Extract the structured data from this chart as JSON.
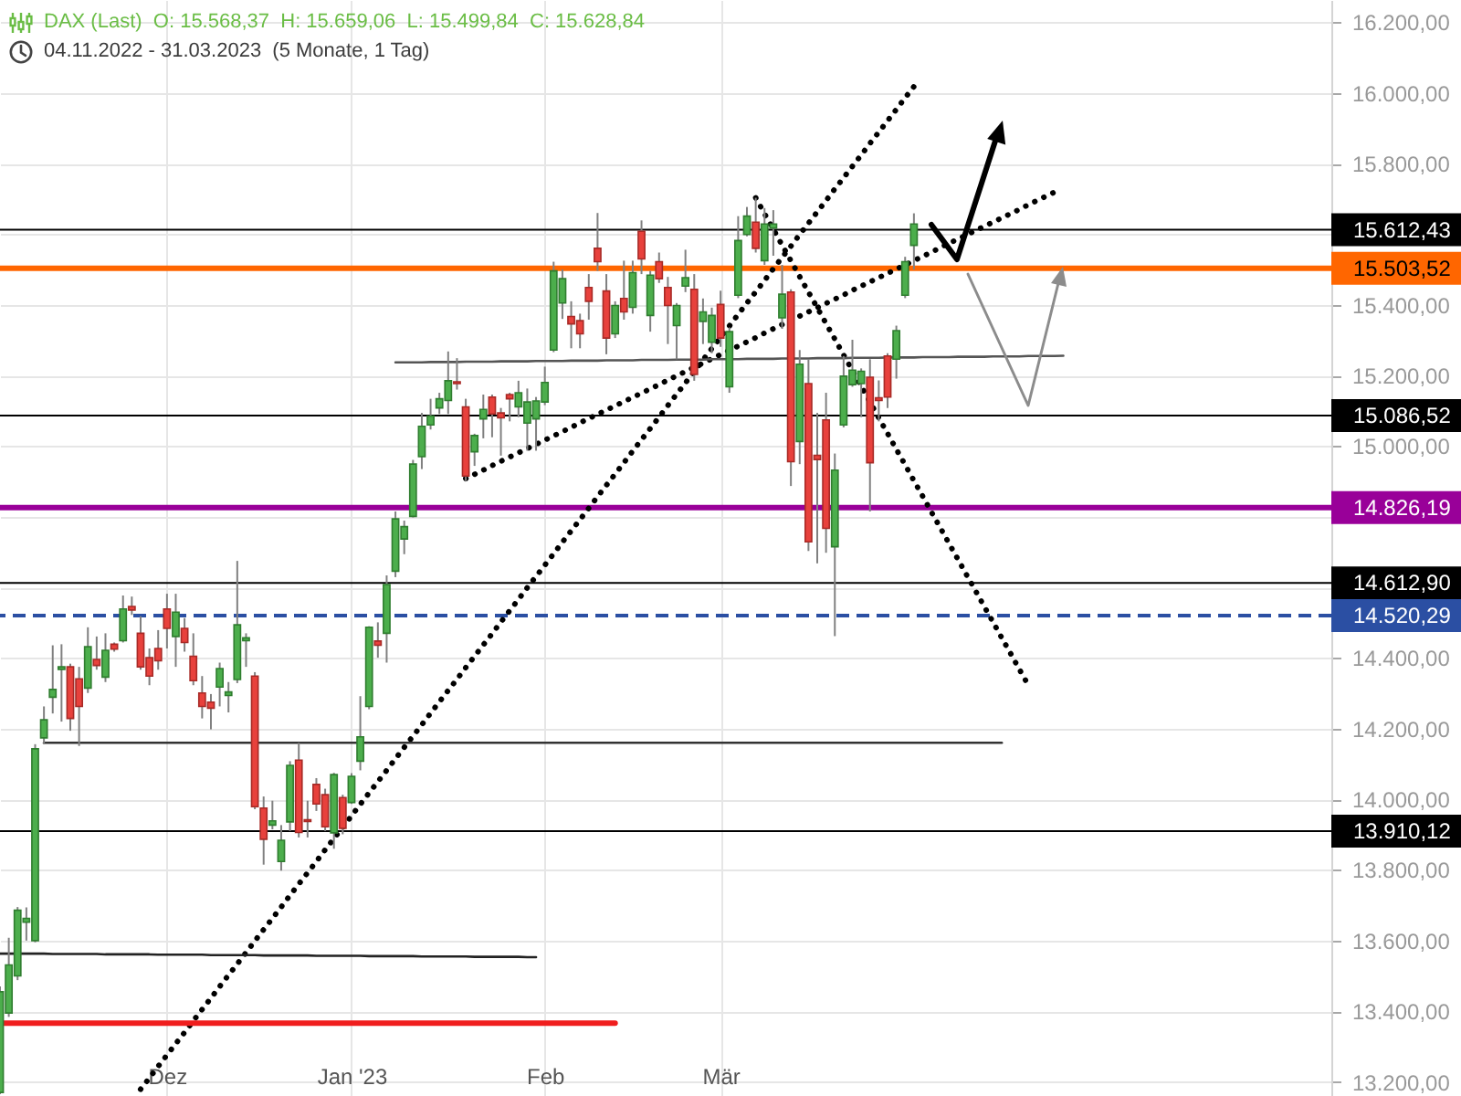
{
  "chart_data": {
    "type": "candlestick",
    "title": "DAX (Last)  O: 15.568,37  H: 15.659,06  L: 15.499,84  C: 15.628,84",
    "subtitle": "04.11.2022 - 31.03.2023  (5 Monate, 1 Tag)",
    "categories": [
      null,
      null,
      null,
      null,
      null,
      null,
      null,
      null,
      null,
      null,
      null,
      null,
      null,
      null,
      null,
      null,
      null,
      null,
      null,
      "Dez",
      null,
      null,
      null,
      null,
      null,
      null,
      null,
      null,
      null,
      null,
      null,
      null,
      null,
      null,
      null,
      null,
      null,
      null,
      null,
      null,
      "Jan '23",
      null,
      null,
      null,
      null,
      null,
      null,
      null,
      null,
      null,
      null,
      null,
      null,
      null,
      null,
      null,
      null,
      null,
      null,
      null,
      null,
      null,
      "Feb",
      null,
      null,
      null,
      null,
      null,
      null,
      null,
      null,
      null,
      null,
      null,
      null,
      null,
      null,
      null,
      null,
      null,
      null,
      null,
      "Mär",
      null,
      null,
      null,
      null,
      null,
      null,
      null,
      null,
      null,
      null,
      null,
      null,
      null,
      null,
      null,
      null,
      null,
      null,
      null,
      null,
      null,
      null,
      null,
      null,
      null,
      null,
      null,
      null,
      null,
      null,
      null,
      null,
      null,
      null,
      null,
      null,
      null,
      null,
      null,
      null,
      null,
      null,
      null,
      null,
      null,
      null,
      null,
      null,
      null,
      null,
      null,
      null,
      null,
      null,
      null,
      null,
      null,
      null,
      null,
      null,
      null,
      null,
      null,
      null,
      null,
      null,
      null,
      null,
      null
    ],
    "ohlc": [
      [
        13170,
        13470,
        13165,
        13455
      ],
      [
        13395,
        13608,
        13384,
        13531
      ],
      [
        13500,
        13695,
        13488,
        13686
      ],
      [
        13652,
        13694,
        13600,
        13663
      ],
      [
        13600,
        14156,
        13595,
        14143
      ],
      [
        14174,
        14263,
        14156,
        14225
      ],
      [
        14289,
        14436,
        14243,
        14311
      ],
      [
        14368,
        14439,
        14220,
        14375
      ],
      [
        14375,
        14384,
        14194,
        14229
      ],
      [
        14341,
        14375,
        14151,
        14263
      ],
      [
        14315,
        14487,
        14301,
        14432
      ],
      [
        14396,
        14461,
        14367,
        14379
      ],
      [
        14346,
        14470,
        14332,
        14422
      ],
      [
        14439,
        14444,
        14418,
        14425
      ],
      [
        14449,
        14577,
        14444,
        14539
      ],
      [
        14546,
        14574,
        14522,
        14536
      ],
      [
        14470,
        14518,
        14367,
        14375
      ],
      [
        14401,
        14427,
        14323,
        14349
      ],
      [
        14427,
        14479,
        14367,
        14392
      ],
      [
        14539,
        14582,
        14427,
        14484
      ],
      [
        14461,
        14582,
        14375,
        14530
      ],
      [
        14484,
        14513,
        14418,
        14444
      ],
      [
        14405,
        14470,
        14323,
        14336
      ],
      [
        14301,
        14349,
        14229,
        14263
      ],
      [
        14275,
        14298,
        14198,
        14258
      ],
      [
        14318,
        14387,
        14263,
        14370
      ],
      [
        14294,
        14332,
        14246,
        14304
      ],
      [
        14339,
        14675,
        14329,
        14494
      ],
      [
        14449,
        14470,
        14375,
        14457
      ],
      [
        14349,
        14360,
        13972,
        13979
      ],
      [
        13975,
        14008,
        13815,
        13887
      ],
      [
        13927,
        13996,
        13915,
        13939
      ],
      [
        13824,
        13927,
        13798,
        13884
      ],
      [
        13936,
        14108,
        13910,
        14096
      ],
      [
        14111,
        14160,
        13892,
        13906
      ],
      [
        13942,
        13996,
        13892,
        13937
      ],
      [
        14042,
        14060,
        13967,
        13987
      ],
      [
        14013,
        14030,
        13910,
        13922
      ],
      [
        13905,
        14075,
        13860,
        14070
      ],
      [
        14005,
        14013,
        13901,
        13918
      ],
      [
        13991,
        14074,
        13987,
        14065
      ],
      [
        14108,
        14292,
        14082,
        14177
      ],
      [
        14263,
        14490,
        14255,
        14487
      ],
      [
        14448,
        14501,
        14401,
        14436
      ],
      [
        14470,
        14634,
        14387,
        14608
      ],
      [
        14646,
        14815,
        14629,
        14794
      ],
      [
        14737,
        14789,
        14694,
        14772
      ],
      [
        14801,
        14961,
        14798,
        14949
      ],
      [
        14970,
        15094,
        14935,
        15056
      ],
      [
        15060,
        15134,
        15047,
        15085
      ],
      [
        15108,
        15151,
        15091,
        15134
      ],
      [
        15129,
        15268,
        15091,
        15185
      ],
      [
        15182,
        15249,
        15160,
        15177
      ],
      [
        15111,
        15134,
        14901,
        14915
      ],
      [
        14984,
        15035,
        14944,
        15030
      ],
      [
        15077,
        15146,
        15022,
        15104
      ],
      [
        15139,
        15146,
        15025,
        15091
      ],
      [
        15094,
        15108,
        14973,
        15080
      ],
      [
        15146,
        15151,
        15070,
        15134
      ],
      [
        15111,
        15185,
        15082,
        15151
      ],
      [
        15065,
        15163,
        14987,
        15125
      ],
      [
        15077,
        15139,
        14987,
        15128
      ],
      [
        15125,
        15225,
        15116,
        15180
      ],
      [
        15272,
        15522,
        15266,
        15496
      ],
      [
        15405,
        15500,
        15360,
        15474
      ],
      [
        15367,
        15410,
        15277,
        15346
      ],
      [
        15355,
        15375,
        15277,
        15318
      ],
      [
        15449,
        15487,
        15358,
        15410
      ],
      [
        15560,
        15660,
        15496,
        15522
      ],
      [
        15439,
        15487,
        15260,
        15306
      ],
      [
        15318,
        15410,
        15306,
        15398
      ],
      [
        15418,
        15525,
        15358,
        15380
      ],
      [
        15393,
        15525,
        15375,
        15491
      ],
      [
        15608,
        15639,
        15487,
        15530
      ],
      [
        15370,
        15496,
        15324,
        15484
      ],
      [
        15522,
        15548,
        15462,
        15474
      ],
      [
        15449,
        15479,
        15289,
        15398
      ],
      [
        15341,
        15405,
        15246,
        15398
      ],
      [
        15453,
        15556,
        15436,
        15477
      ],
      [
        15444,
        15487,
        15185,
        15203
      ],
      [
        15353,
        15418,
        15289,
        15380
      ],
      [
        15294,
        15392,
        15263,
        15370
      ],
      [
        15401,
        15440,
        15281,
        15306
      ],
      [
        15168,
        15336,
        15151,
        15324
      ],
      [
        15427,
        15651,
        15419,
        15582
      ],
      [
        15599,
        15677,
        15594,
        15651
      ],
      [
        15634,
        15703,
        15548,
        15560
      ],
      [
        15525,
        15674,
        15513,
        15629
      ],
      [
        15617,
        15668,
        15539,
        15629
      ],
      [
        15363,
        15513,
        15332,
        15430
      ],
      [
        15436,
        15444,
        14887,
        14956
      ],
      [
        15013,
        15272,
        14949,
        15232
      ],
      [
        15177,
        15246,
        14703,
        14729
      ],
      [
        14974,
        15094,
        14668,
        14962
      ],
      [
        15074,
        15151,
        14698,
        14767
      ],
      [
        14715,
        14979,
        14462,
        14932
      ],
      [
        15060,
        15255,
        15053,
        15198
      ],
      [
        15174,
        15301,
        15168,
        15215
      ],
      [
        15177,
        15220,
        15082,
        15212
      ],
      [
        15195,
        15246,
        14815,
        14953
      ],
      [
        15137,
        15186,
        15070,
        15129
      ],
      [
        15255,
        15263,
        15108,
        15139
      ],
      [
        15246,
        15341,
        15191,
        15327
      ],
      [
        15427,
        15536,
        15419,
        15522
      ],
      [
        15568.37,
        15659.06,
        15499.84,
        15628.84
      ],
      null,
      null,
      null,
      null,
      null,
      null,
      null,
      null,
      null,
      null,
      null,
      null,
      null,
      null,
      null,
      null,
      null,
      null,
      null,
      null,
      null,
      null,
      null,
      null,
      null,
      null,
      null,
      null,
      null,
      null,
      null,
      null,
      null,
      null,
      null,
      null,
      null,
      null,
      null,
      null,
      null,
      null,
      null,
      null,
      null,
      null,
      null
    ],
    "ylim": [
      13160,
      16263
    ],
    "yticks": [
      {
        "value": 13200,
        "label": "13.200,00"
      },
      {
        "value": 13400,
        "label": "13.400,00"
      },
      {
        "value": 13600,
        "label": "13.600,00"
      },
      {
        "value": 13800,
        "label": "13.800,00"
      },
      {
        "value": 14000,
        "label": "14.000,00"
      },
      {
        "value": 14200,
        "label": "14.200,00"
      },
      {
        "value": 14400,
        "label": "14.400,00"
      },
      {
        "value": 14600,
        "label": null
      },
      {
        "value": 14800,
        "label": null
      },
      {
        "value": 15000,
        "label": "15.000,00"
      },
      {
        "value": 15200,
        "label": "15.200,00"
      },
      {
        "value": 15400,
        "label": "15.400,00"
      },
      {
        "value": 15600,
        "label": null
      },
      {
        "value": 15800,
        "label": "15.800,00"
      },
      {
        "value": 16000,
        "label": "16.000,00"
      },
      {
        "value": 16200,
        "label": "16.200,00"
      }
    ],
    "grid": true,
    "ref_lines": [
      {
        "axis": "y",
        "value": 15612.43,
        "label": "15.612,43",
        "color": "#000000"
      },
      {
        "axis": "y",
        "value": 15503.52,
        "label": "15.503,52",
        "color": "#ff6600"
      },
      {
        "axis": "y",
        "value": 15086.52,
        "label": "15.086,52",
        "color": "#000000"
      },
      {
        "axis": "y",
        "value": 14826.19,
        "label": "14.826,19",
        "color": "#990099"
      },
      {
        "axis": "y",
        "value": 14612.9,
        "label": "14.612,90",
        "color": "#000000"
      },
      {
        "axis": "y",
        "value": 14520.29,
        "label": "14.520,29",
        "color": "#2b4fa3",
        "line_style": "dashed"
      },
      {
        "axis": "y",
        "value": 13910.12,
        "label": "13.910,12",
        "color": "#000000"
      }
    ],
    "series": [
      {
        "type": "line",
        "color": "#000000",
        "line_style": "dotted",
        "values": [
          null,
          null,
          null,
          null,
          null,
          null,
          null,
          null,
          null,
          null,
          null,
          null,
          null,
          null,
          null,
          null,
          13179,
          13211,
          13244,
          13276,
          13308,
          13340,
          13373,
          13405,
          13437,
          13470,
          13502,
          13534,
          13566,
          13599,
          13631,
          13663,
          13695,
          13728,
          13760,
          13792,
          13824,
          13857,
          13889,
          13921,
          13953,
          13986,
          14018,
          14050,
          14082,
          14115,
          14147,
          14179,
          14211,
          14244,
          14276,
          14308,
          14340,
          14373,
          14405,
          14437,
          14469,
          14502,
          14534,
          14566,
          14599,
          14631,
          14663,
          14695,
          14728,
          14760,
          14792,
          14824,
          14857,
          14889,
          14921,
          14953,
          14986,
          15018,
          15050,
          15082,
          15115,
          15147,
          15179,
          15211,
          15244,
          15276,
          15308,
          15340,
          15373,
          15405,
          15437,
          15469,
          15502,
          15534,
          15566,
          15599,
          15631,
          15663,
          15695,
          15728,
          15760,
          15792,
          15824,
          15857,
          15889,
          15921,
          15953,
          15986,
          16018,
          null,
          null,
          null,
          null,
          null,
          null,
          null,
          null,
          null,
          null,
          null,
          null,
          null,
          null,
          null,
          null,
          null,
          null,
          null,
          null,
          null,
          null,
          null,
          null,
          null,
          null,
          null,
          null,
          null,
          null,
          null,
          null,
          null,
          null,
          null,
          null,
          null,
          null,
          null,
          null,
          null,
          null,
          null,
          null,
          null,
          null,
          null
        ]
      },
      {
        "type": "line",
        "color": "#000000",
        "line_style": "dotted",
        "values": [
          null,
          null,
          null,
          null,
          null,
          null,
          null,
          null,
          null,
          null,
          null,
          null,
          null,
          null,
          null,
          null,
          null,
          null,
          null,
          null,
          null,
          null,
          null,
          null,
          null,
          null,
          null,
          null,
          null,
          null,
          null,
          null,
          null,
          null,
          null,
          null,
          null,
          null,
          null,
          null,
          null,
          null,
          null,
          null,
          null,
          null,
          null,
          null,
          null,
          null,
          null,
          null,
          null,
          14908,
          14920,
          14932,
          14945,
          14957,
          14969,
          14981,
          14993,
          15005,
          15017,
          15029,
          15041,
          15053,
          15066,
          15078,
          15090,
          15102,
          15114,
          15126,
          15138,
          15150,
          15162,
          15174,
          15187,
          15199,
          15211,
          15223,
          15235,
          15247,
          15259,
          15271,
          15283,
          15295,
          15307,
          15320,
          15332,
          15344,
          15356,
          15368,
          15380,
          15392,
          15404,
          15416,
          15428,
          15441,
          15453,
          15465,
          15477,
          15489,
          15501,
          15513,
          15525,
          15537,
          15549,
          15562,
          15574,
          15586,
          15598,
          15610,
          15622,
          15634,
          15646,
          15658,
          15670,
          15683,
          15695,
          15707,
          15719,
          null,
          null,
          null,
          null,
          null,
          null,
          null,
          null,
          null,
          null,
          null,
          null,
          null,
          null,
          null,
          null,
          null,
          null,
          null,
          null,
          null,
          null,
          null,
          null,
          null,
          null,
          null,
          null,
          null,
          null,
          null
        ]
      },
      {
        "type": "line",
        "color": "#000000",
        "line_style": "dotted",
        "values": [
          null,
          null,
          null,
          null,
          null,
          null,
          null,
          null,
          null,
          null,
          null,
          null,
          null,
          null,
          null,
          null,
          null,
          null,
          null,
          null,
          null,
          null,
          null,
          null,
          null,
          null,
          null,
          null,
          null,
          null,
          null,
          null,
          null,
          null,
          null,
          null,
          null,
          null,
          null,
          null,
          null,
          null,
          null,
          null,
          null,
          null,
          null,
          null,
          null,
          null,
          null,
          null,
          null,
          null,
          null,
          null,
          null,
          null,
          null,
          null,
          null,
          null,
          null,
          null,
          null,
          null,
          null,
          null,
          null,
          null,
          null,
          null,
          null,
          null,
          null,
          null,
          null,
          null,
          null,
          null,
          null,
          null,
          null,
          null,
          null,
          null,
          15703,
          15658,
          15614,
          15569,
          15525,
          15480,
          15436,
          15392,
          15347,
          15303,
          15258,
          15214,
          15169,
          15125,
          15080,
          15036,
          14991,
          14947,
          14902,
          14858,
          14813,
          14769,
          14724,
          14680,
          14635,
          14591,
          14546,
          14502,
          14457,
          14413,
          14368,
          14324,
          null,
          null,
          null,
          null,
          null,
          null,
          null,
          null,
          null,
          null,
          null,
          null,
          null,
          null,
          null,
          null,
          null,
          null,
          null,
          null,
          null,
          null,
          null,
          null,
          null,
          null,
          null,
          null,
          null,
          null,
          null,
          null,
          null,
          null
        ]
      },
      {
        "type": "line",
        "color": "#555555",
        "line_style": "solid",
        "values": [
          null,
          null,
          null,
          null,
          null,
          null,
          null,
          null,
          null,
          null,
          null,
          null,
          null,
          null,
          null,
          null,
          null,
          null,
          null,
          null,
          null,
          null,
          null,
          null,
          null,
          null,
          null,
          null,
          null,
          null,
          null,
          null,
          null,
          null,
          null,
          null,
          null,
          null,
          null,
          null,
          null,
          null,
          null,
          null,
          null,
          15237,
          15237,
          15237,
          15237,
          15238,
          15238,
          15238,
          15238,
          15239,
          15239,
          15239,
          15239,
          15240,
          15240,
          15240,
          15240,
          15241,
          15241,
          15241,
          15241,
          15242,
          15242,
          15242,
          15242,
          15243,
          15243,
          15243,
          15243,
          15244,
          15244,
          15244,
          15244,
          15245,
          15245,
          15245,
          15245,
          15246,
          15246,
          15246,
          15246,
          15247,
          15247,
          15247,
          15247,
          15248,
          15248,
          15248,
          15248,
          15249,
          15249,
          15249,
          15249,
          15250,
          15250,
          15250,
          15250,
          15251,
          15251,
          15251,
          15251,
          15252,
          15252,
          15252,
          15252,
          15253,
          15253,
          15253,
          15253,
          15254,
          15254,
          15254,
          15254,
          15255,
          15255,
          15255,
          15255,
          15256,
          null,
          null,
          null,
          null,
          null,
          null,
          null,
          null,
          null,
          null,
          null,
          null,
          null,
          null,
          null,
          null,
          null,
          null,
          null,
          null,
          null,
          null,
          null,
          null,
          null,
          null,
          null,
          null,
          null,
          null
        ]
      },
      {
        "type": "line",
        "color": "#333333",
        "line_style": "solid",
        "values": [
          null,
          null,
          null,
          null,
          null,
          14160,
          14160,
          14160,
          14160,
          14160,
          14160,
          14160,
          14160,
          14160,
          14160,
          14160,
          14160,
          14160,
          14160,
          14160,
          14160,
          14160,
          14160,
          14160,
          14160,
          14160,
          14160,
          14160,
          14160,
          14160,
          14160,
          14160,
          14160,
          14160,
          14160,
          14160,
          14160,
          14160,
          14160,
          14160,
          14160,
          14160,
          14160,
          14160,
          14160,
          14160,
          14160,
          14160,
          14160,
          14160,
          14160,
          14160,
          14160,
          14160,
          14160,
          14160,
          14160,
          14160,
          14160,
          14160,
          14160,
          14160,
          14160,
          14160,
          14160,
          14160,
          14160,
          14160,
          14160,
          14160,
          14160,
          14160,
          14160,
          14160,
          14160,
          14160,
          14160,
          14160,
          14160,
          14160,
          14160,
          14160,
          14160,
          14160,
          14160,
          14160,
          14160,
          14160,
          14160,
          14160,
          14160,
          14160,
          14160,
          14160,
          14160,
          14160,
          14160,
          14160,
          14160,
          14160,
          14160,
          14160,
          14160,
          14160,
          14160,
          14160,
          14160,
          14160,
          14160,
          14160,
          14160,
          14160,
          14160,
          14160,
          14160,
          null,
          null,
          null,
          null,
          null,
          null,
          null,
          null,
          null,
          null,
          null,
          null,
          null,
          null,
          null,
          null,
          null,
          null,
          null,
          null,
          null,
          null,
          null,
          null,
          null,
          null,
          null,
          null,
          null,
          null,
          null,
          null,
          null,
          null,
          null,
          null,
          null
        ]
      },
      {
        "type": "line",
        "color": "#222222",
        "line_style": "solid",
        "values": [
          13563,
          13563,
          13563,
          13563,
          13563,
          13563,
          13562,
          13562,
          13562,
          13562,
          13562,
          13562,
          13561,
          13561,
          13561,
          13561,
          13561,
          13561,
          13560,
          13560,
          13560,
          13560,
          13560,
          13560,
          13559,
          13559,
          13559,
          13559,
          13559,
          13559,
          13558,
          13558,
          13558,
          13558,
          13558,
          13558,
          13557,
          13557,
          13557,
          13557,
          13557,
          13557,
          13556,
          13556,
          13556,
          13556,
          13556,
          13556,
          13555,
          13555,
          13555,
          13555,
          13555,
          13555,
          13554,
          13554,
          13554,
          13554,
          13554,
          13554,
          13553,
          13553,
          null,
          null,
          null,
          null,
          null,
          null,
          null,
          null,
          null,
          null,
          null,
          null,
          null,
          null,
          null,
          null,
          null,
          null,
          null,
          null,
          null,
          null,
          null,
          null,
          null,
          null,
          null,
          null,
          null,
          null,
          null,
          null,
          null,
          null,
          null,
          null,
          null,
          null,
          null,
          null,
          null,
          null,
          null,
          null,
          null,
          null,
          null,
          null,
          null,
          null,
          null,
          null,
          null,
          null,
          null,
          null,
          null,
          null,
          null,
          null,
          null,
          null,
          null,
          null,
          null,
          null,
          null,
          null,
          null,
          null,
          null,
          null,
          null,
          null,
          null,
          null,
          null,
          null,
          null,
          null,
          null,
          null,
          null,
          null,
          null,
          null,
          null,
          null,
          null,
          null
        ]
      },
      {
        "type": "line",
        "color": "#f01e1e",
        "line_style": "solid",
        "values": [
          13366,
          13366,
          13366,
          13366,
          13366,
          13366,
          13366,
          13366,
          13366,
          13366,
          13366,
          13366,
          13366,
          13366,
          13366,
          13366,
          13366,
          13366,
          13366,
          13366,
          13366,
          13366,
          13366,
          13366,
          13366,
          13366,
          13366,
          13366,
          13366,
          13366,
          13366,
          13366,
          13366,
          13366,
          13366,
          13366,
          13366,
          13366,
          13366,
          13366,
          13366,
          13366,
          13366,
          13366,
          13366,
          13366,
          13366,
          13366,
          13366,
          13366,
          13366,
          13366,
          13366,
          13366,
          13366,
          13366,
          13366,
          13366,
          13366,
          13366,
          13366,
          13366,
          13366,
          13366,
          13366,
          13366,
          13366,
          13366,
          13366,
          13366,
          13366,
          null,
          null,
          null,
          null,
          null,
          null,
          null,
          null,
          null,
          null,
          null,
          null,
          null,
          null,
          null,
          null,
          null,
          null,
          null,
          null,
          null,
          null,
          null,
          null,
          null,
          null,
          null,
          null,
          null,
          null,
          null,
          null,
          null,
          null,
          null,
          null,
          null,
          null,
          null,
          null,
          null,
          null,
          null,
          null,
          null,
          null,
          null,
          null,
          null,
          null,
          null,
          null,
          null,
          null,
          null,
          null,
          null,
          null,
          null,
          null,
          null,
          null,
          null,
          null,
          null,
          null,
          null,
          null,
          null,
          null,
          null,
          null,
          null,
          null,
          null,
          null,
          null,
          null,
          null,
          null,
          null
        ]
      }
    ]
  }
}
